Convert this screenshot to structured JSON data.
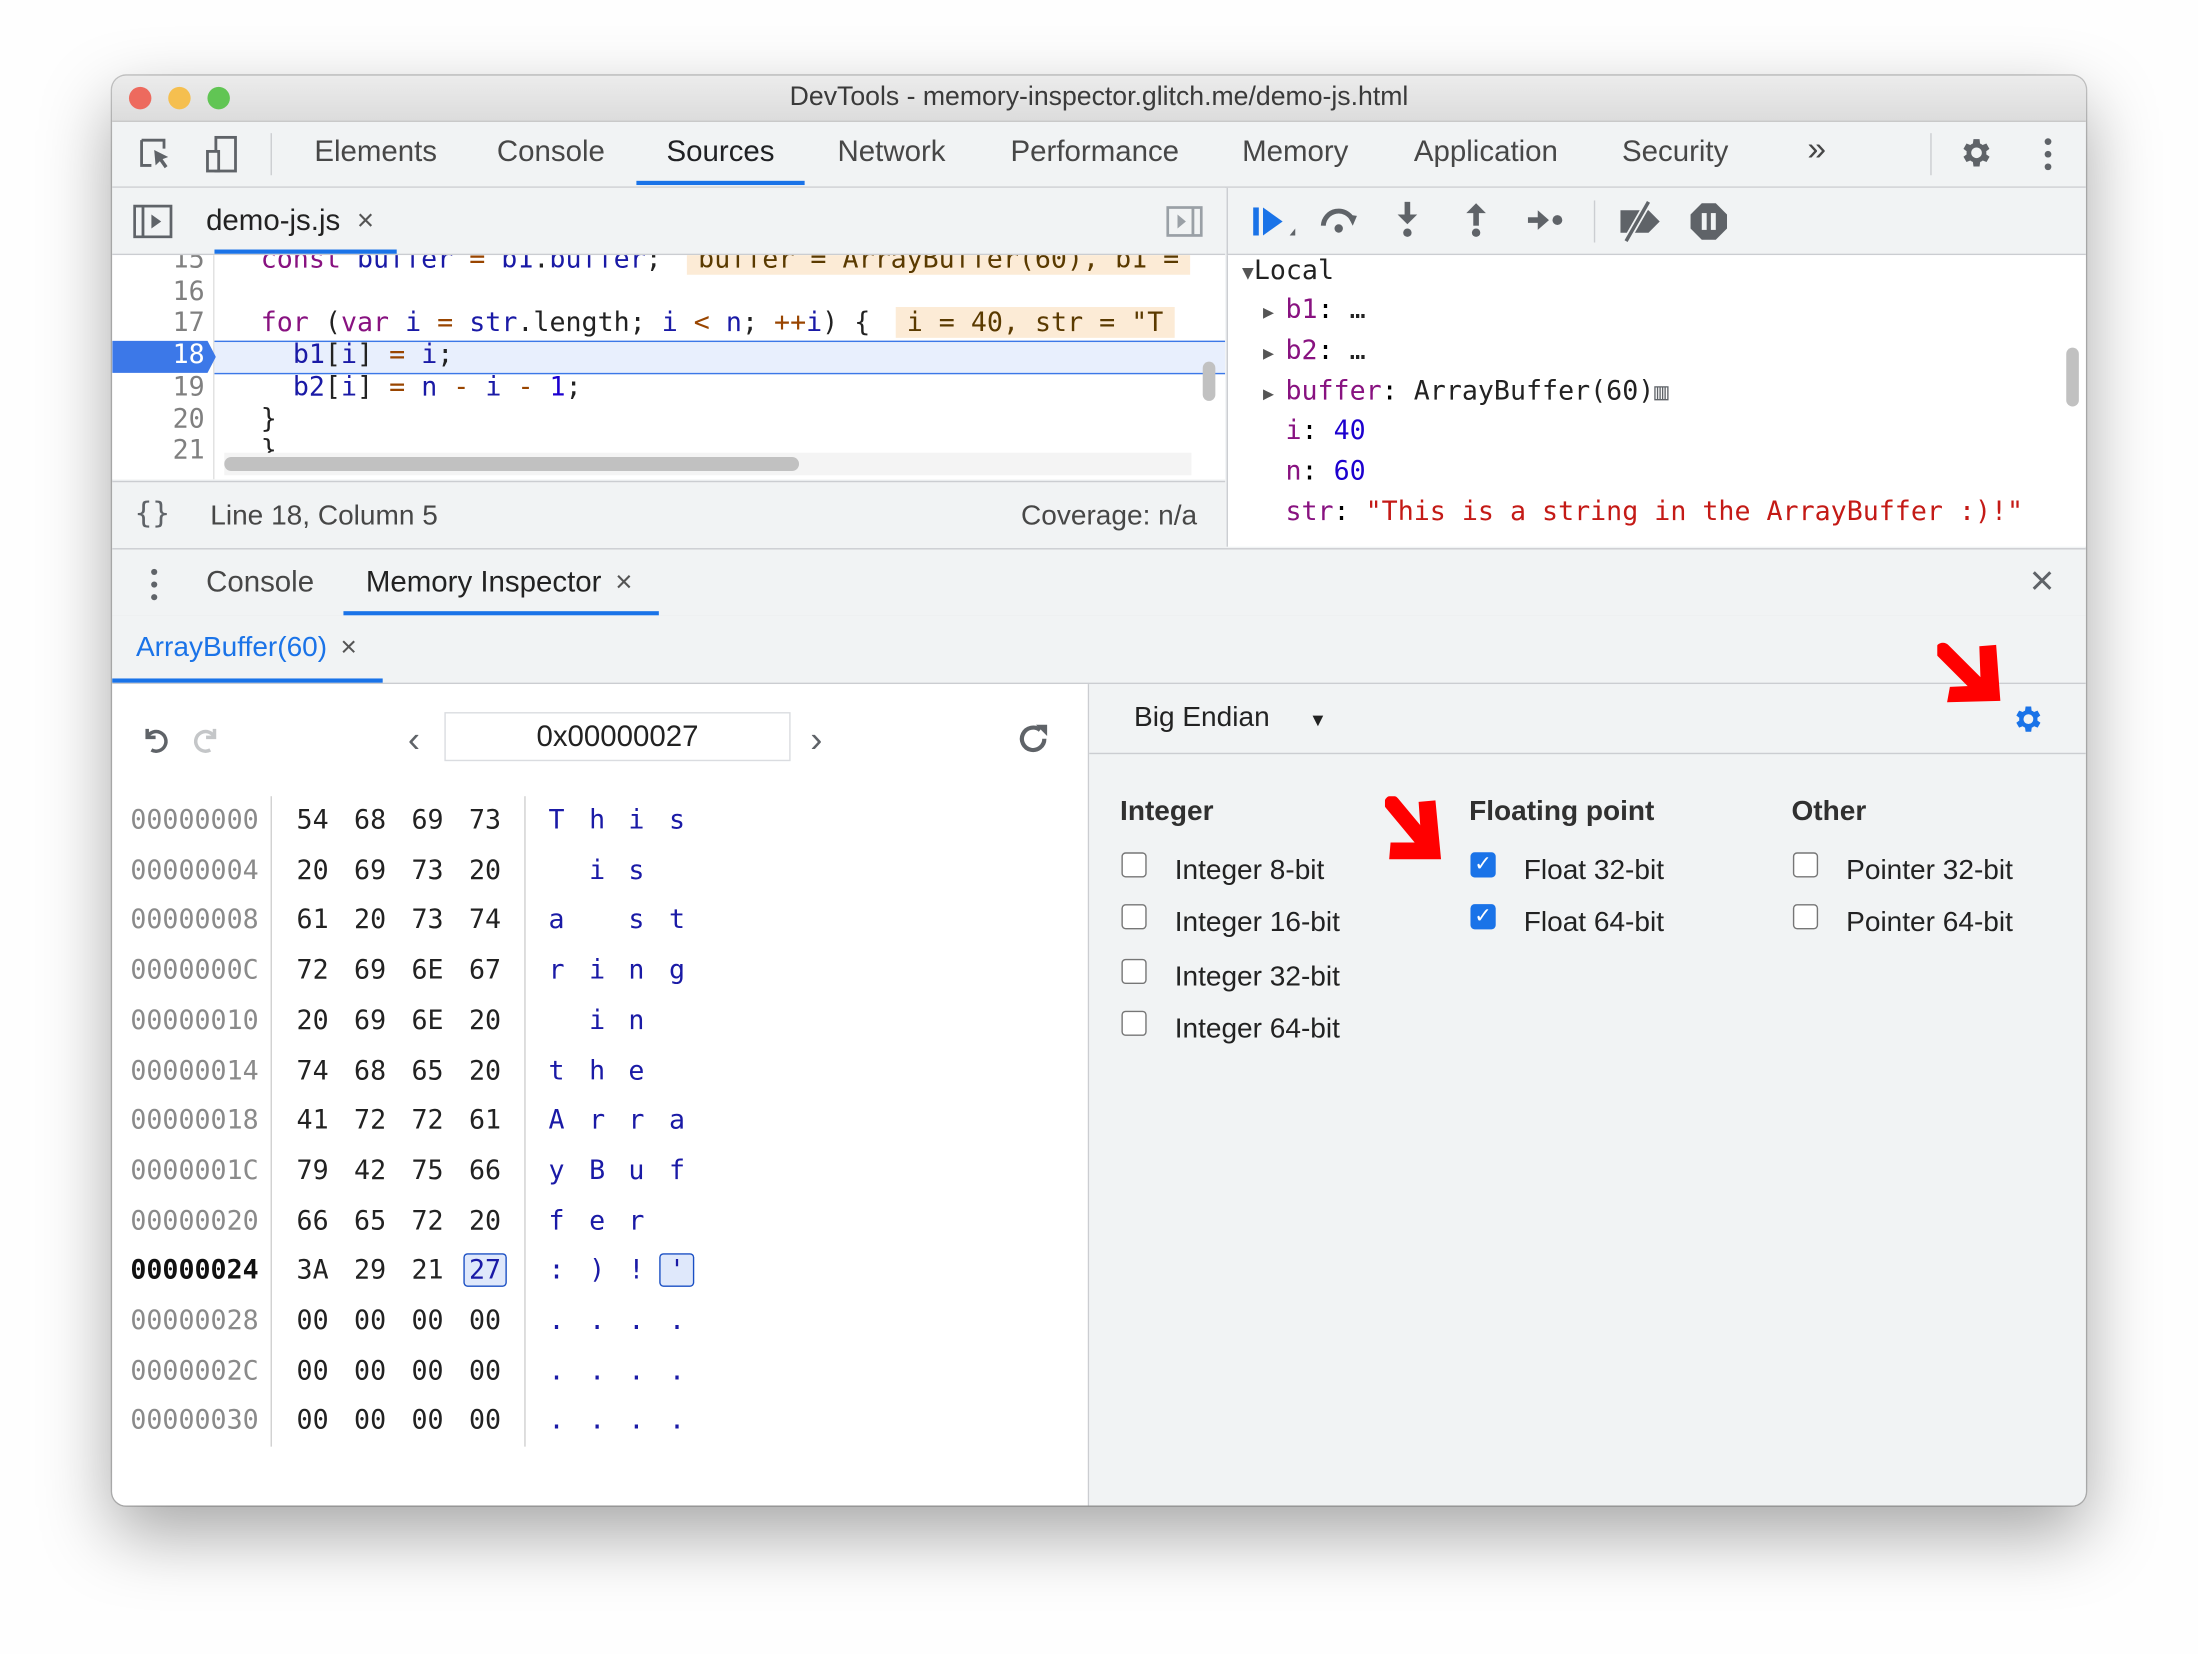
{
  "window": {
    "title": "DevTools - memory-inspector.glitch.me/demo-js.html"
  },
  "main_tabs": [
    {
      "label": "Elements"
    },
    {
      "label": "Console"
    },
    {
      "label": "Sources",
      "active": true
    },
    {
      "label": "Network"
    },
    {
      "label": "Performance"
    },
    {
      "label": "Memory"
    },
    {
      "label": "Application"
    },
    {
      "label": "Security"
    }
  ],
  "more_tabs_label": "»",
  "editor": {
    "file_tab": "demo-js.js",
    "close": "×",
    "lines": [
      {
        "num": "15",
        "tokens": [
          [
            "kw",
            "const "
          ],
          [
            "vr",
            "buffer "
          ],
          [
            "op",
            "= "
          ],
          [
            "vr",
            "b1"
          ],
          [
            "pl",
            "."
          ],
          [
            "vr",
            "buffer"
          ],
          [
            "pl",
            ";"
          ]
        ],
        "inline": "buffer = ArrayBuffer(60), b1 ="
      },
      {
        "num": "16",
        "tokens": []
      },
      {
        "num": "17",
        "tokens": [
          [
            "kw",
            "for "
          ],
          [
            "pl",
            "("
          ],
          [
            "kw",
            "var "
          ],
          [
            "vr",
            "i "
          ],
          [
            "op",
            "= "
          ],
          [
            "vr",
            "str"
          ],
          [
            "pl",
            ".length; "
          ],
          [
            "vr",
            "i "
          ],
          [
            "op",
            "< "
          ],
          [
            "vr",
            "n"
          ],
          [
            "pl",
            "; "
          ],
          [
            "op",
            "++"
          ],
          [
            "vr",
            "i"
          ],
          [
            "pl",
            ") {"
          ]
        ],
        "inline": "i = 40, str = \"T"
      },
      {
        "num": "18",
        "tokens": [
          [
            "pl",
            "  "
          ],
          [
            "vr",
            "b1"
          ],
          [
            "pl",
            "["
          ],
          [
            "vr",
            "i"
          ],
          [
            "pl",
            "] "
          ],
          [
            "op",
            "= "
          ],
          [
            "vr",
            "i"
          ],
          [
            "pl",
            ";"
          ]
        ],
        "current": true
      },
      {
        "num": "19",
        "tokens": [
          [
            "pl",
            "  "
          ],
          [
            "vr",
            "b2"
          ],
          [
            "pl",
            "["
          ],
          [
            "vr",
            "i"
          ],
          [
            "pl",
            "] "
          ],
          [
            "op",
            "= "
          ],
          [
            "vr",
            "n "
          ],
          [
            "op",
            "- "
          ],
          [
            "vr",
            "i "
          ],
          [
            "op",
            "- "
          ],
          [
            "nm",
            "1"
          ],
          [
            "pl",
            ";"
          ]
        ]
      },
      {
        "num": "20",
        "tokens": [
          [
            "pl",
            "}"
          ]
        ]
      },
      {
        "num": "21",
        "tokens": [
          [
            "pl",
            "}"
          ]
        ]
      }
    ],
    "status": {
      "format_label": "{}",
      "position": "Line 18, Column 5",
      "coverage": "Coverage: n/a"
    }
  },
  "scope": {
    "section": "Local",
    "rows": [
      {
        "name": "b1",
        "value": "…",
        "expandable": true,
        "kind": "obj"
      },
      {
        "name": "b2",
        "value": "…",
        "expandable": true,
        "kind": "obj"
      },
      {
        "name": "buffer",
        "value": "ArrayBuffer(60)",
        "expandable": true,
        "kind": "obj",
        "memory_icon": true
      },
      {
        "name": "i",
        "value": "40",
        "kind": "num"
      },
      {
        "name": "n",
        "value": "60",
        "kind": "num"
      },
      {
        "name": "str",
        "value": "\"This is a string in the ArrayBuffer :)!\"",
        "kind": "str"
      }
    ]
  },
  "drawer": {
    "tabs": [
      {
        "label": "Console"
      },
      {
        "label": "Memory Inspector",
        "active": true,
        "closable": true
      }
    ],
    "close": "×"
  },
  "memory_inspector": {
    "buffer_tab": "ArrayBuffer(60)",
    "address": "0x00000027",
    "rows": [
      {
        "addr": "00000000",
        "bytes": [
          "54",
          "68",
          "69",
          "73"
        ],
        "chars": [
          "T",
          "h",
          "i",
          "s"
        ]
      },
      {
        "addr": "00000004",
        "bytes": [
          "20",
          "69",
          "73",
          "20"
        ],
        "chars": [
          " ",
          "i",
          "s",
          " "
        ]
      },
      {
        "addr": "00000008",
        "bytes": [
          "61",
          "20",
          "73",
          "74"
        ],
        "chars": [
          "a",
          " ",
          "s",
          "t"
        ]
      },
      {
        "addr": "0000000C",
        "bytes": [
          "72",
          "69",
          "6E",
          "67"
        ],
        "chars": [
          "r",
          "i",
          "n",
          "g"
        ]
      },
      {
        "addr": "00000010",
        "bytes": [
          "20",
          "69",
          "6E",
          "20"
        ],
        "chars": [
          " ",
          "i",
          "n",
          " "
        ]
      },
      {
        "addr": "00000014",
        "bytes": [
          "74",
          "68",
          "65",
          "20"
        ],
        "chars": [
          "t",
          "h",
          "e",
          " "
        ]
      },
      {
        "addr": "00000018",
        "bytes": [
          "41",
          "72",
          "72",
          "61"
        ],
        "chars": [
          "A",
          "r",
          "r",
          "a"
        ]
      },
      {
        "addr": "0000001C",
        "bytes": [
          "79",
          "42",
          "75",
          "66"
        ],
        "chars": [
          "y",
          "B",
          "u",
          "f"
        ]
      },
      {
        "addr": "00000020",
        "bytes": [
          "66",
          "65",
          "72",
          "20"
        ],
        "chars": [
          "f",
          "e",
          "r",
          " "
        ]
      },
      {
        "addr": "00000024",
        "bytes": [
          "3A",
          "29",
          "21",
          "27"
        ],
        "chars": [
          ":",
          ")",
          "!",
          "'"
        ],
        "current": true,
        "selected_index": 3
      },
      {
        "addr": "00000028",
        "bytes": [
          "00",
          "00",
          "00",
          "00"
        ],
        "chars": [
          ".",
          ".",
          ".",
          "."
        ]
      },
      {
        "addr": "0000002C",
        "bytes": [
          "00",
          "00",
          "00",
          "00"
        ],
        "chars": [
          ".",
          ".",
          ".",
          "."
        ]
      },
      {
        "addr": "00000030",
        "bytes": [
          "00",
          "00",
          "00",
          "00"
        ],
        "chars": [
          ".",
          ".",
          ".",
          "."
        ]
      }
    ],
    "endianness": "Big Endian",
    "groups": [
      {
        "heading": "Integer",
        "options": [
          {
            "label": "Integer 8-bit",
            "checked": false
          },
          {
            "label": "Integer 16-bit",
            "checked": false
          },
          {
            "label": "Integer 32-bit",
            "checked": false
          },
          {
            "label": "Integer 64-bit",
            "checked": false
          }
        ]
      },
      {
        "heading": "Floating point",
        "options": [
          {
            "label": "Float 32-bit",
            "checked": true
          },
          {
            "label": "Float 64-bit",
            "checked": true
          }
        ]
      },
      {
        "heading": "Other",
        "options": [
          {
            "label": "Pointer 32-bit",
            "checked": false
          },
          {
            "label": "Pointer 64-bit",
            "checked": false
          }
        ]
      }
    ]
  },
  "colors": {
    "accent": "#1a73e8",
    "annotation_arrow": "#ff0000",
    "string": "#c41a16",
    "number": "#1c00cf",
    "property": "#881280"
  }
}
